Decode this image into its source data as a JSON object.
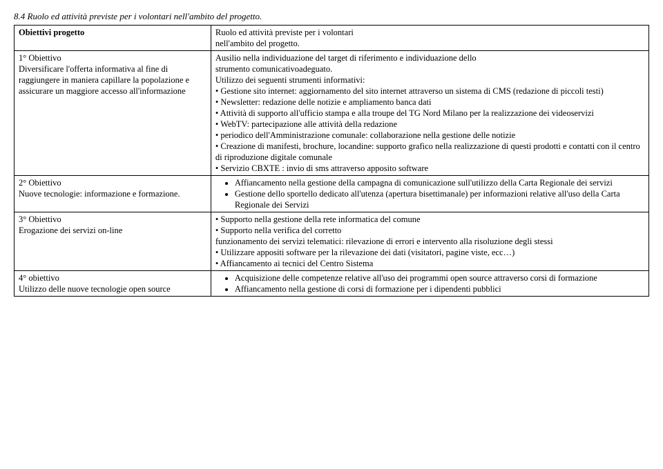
{
  "section_heading": "8.4 Ruolo ed attività previste per i volontari nell'ambito del progetto.",
  "row1": {
    "left_bold": "Obiettivi progetto",
    "right_line1": "Ruolo ed attività previste per i volontari",
    "right_line2": "nell'ambito del progetto."
  },
  "row2": {
    "left_l1": "1° Obiettivo",
    "left_l2": "Diversificare l'offerta informativa al fine di",
    "left_l3": "raggiungere in maniera capillare la popolazione e",
    "left_l4": "assicurare un maggiore accesso all'informazione",
    "right_l1": "Ausilio nella individuazione del target di riferimento e individuazione dello",
    "right_l2": "strumento comunicativoadeguato.",
    "right_l3": "Utilizzo dei seguenti strumenti informativi:",
    "right_b1": "• Gestione sito internet: aggiornamento del sito internet attraverso un sistema di CMS (redazione di piccoli testi)",
    "right_b2": "• Newsletter: redazione delle notizie e ampliamento banca dati",
    "right_b3": "• Attività di supporto all'ufficio stampa e alla troupe del TG Nord Milano per la realizzazione dei videoservizi",
    "right_b4": "• WebTV: partecipazione alle attività della redazione",
    "right_b5": "• periodico dell'Amministrazione comunale: collaborazione nella gestione delle notizie",
    "right_b6": "• Creazione di manifesti, brochure, locandine: supporto grafico nella realizzazione di questi prodotti e contatti con il centro di riproduzione digitale comunale",
    "right_b7": "• Servizio CBXTE : invio di sms attraverso apposito software"
  },
  "row3": {
    "left_l1": "2° Obiettivo",
    "left_l2": "Nuove tecnologie: informazione e formazione.",
    "right_b1": "Affiancamento nella gestione della campagna di comunicazione sull'utilizzo della Carta Regionale dei servizi",
    "right_b2": "Gestione dello sportello dedicato all'utenza (apertura bisettimanale) per informazioni relative all'uso della Carta Regionale dei Servizi"
  },
  "row4": {
    "left_l1": "3° Obiettivo",
    "left_l2": "Erogazione dei servizi on-line",
    "right_b1": "• Supporto nella gestione della rete informatica del comune",
    "right_b2": "• Supporto nella verifica del corretto",
    "right_l3": "funzionamento dei servizi telematici: rilevazione di errori e intervento alla risoluzione degli stessi",
    "right_b3": "• Utilizzare appositi software per la rilevazione dei dati (visitatori, pagine viste, ecc…)",
    "right_b4": "• Affiancamento ai tecnici del Centro Sistema"
  },
  "row5": {
    "left_l1": "4° obiettivo",
    "left_l2": "Utilizzo delle nuove tecnologie open source",
    "right_b1": "Acquisizione delle competenze relative all'uso dei programmi open source attraverso corsi di formazione",
    "right_b2": "Affiancamento nella gestione di corsi di formazione per i dipendenti pubblici"
  }
}
